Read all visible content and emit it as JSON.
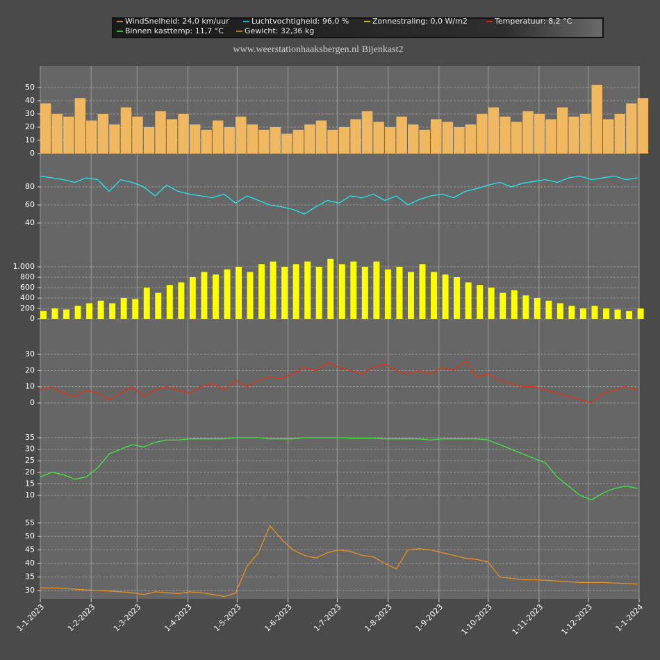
{
  "chart_data": {
    "type": "line",
    "title": "www.weerstationhaaksbergen.nl Bijenkast2",
    "x": [
      "1-1-2023",
      "8-1-2023",
      "15-1-2023",
      "22-1-2023",
      "29-1-2023",
      "5-2-2023",
      "12-2-2023",
      "19-2-2023",
      "26-2-2023",
      "5-3-2023",
      "12-3-2023",
      "19-3-2023",
      "26-3-2023",
      "2-4-2023",
      "9-4-2023",
      "16-4-2023",
      "23-4-2023",
      "30-4-2023",
      "7-5-2023",
      "14-5-2023",
      "21-5-2023",
      "28-5-2023",
      "4-6-2023",
      "11-6-2023",
      "18-6-2023",
      "25-6-2023",
      "2-7-2023",
      "9-7-2023",
      "16-7-2023",
      "23-7-2023",
      "30-7-2023",
      "6-8-2023",
      "13-8-2023",
      "20-8-2023",
      "27-8-2023",
      "3-9-2023",
      "10-9-2023",
      "17-9-2023",
      "24-9-2023",
      "1-10-2023",
      "8-10-2023",
      "15-10-2023",
      "22-10-2023",
      "29-10-2023",
      "5-11-2023",
      "12-11-2023",
      "19-11-2023",
      "26-11-2023",
      "3-12-2023",
      "10-12-2023",
      "17-12-2023",
      "24-12-2023",
      "31-12-2023"
    ],
    "xlim": [
      "1-1-2023",
      "1-1-2024"
    ],
    "xticks": [
      "1-1-2023",
      "1-2-2023",
      "1-3-2023",
      "1-4-2023",
      "1-5-2023",
      "1-6-2023",
      "1-7-2023",
      "1-8-2023",
      "1-9-2023",
      "1-10-2023",
      "1-11-2023",
      "1-12-2023",
      "1-1-2024"
    ],
    "grid": true,
    "series": [
      {
        "name": "WindSnelheid: 24,0 km/uur",
        "color": "#f0b860",
        "type": "bar",
        "values": [
          38,
          30,
          28,
          42,
          25,
          30,
          22,
          35,
          28,
          20,
          32,
          26,
          30,
          22,
          18,
          25,
          20,
          28,
          22,
          18,
          20,
          15,
          18,
          22,
          25,
          18,
          20,
          26,
          32,
          24,
          20,
          28,
          22,
          18,
          26,
          24,
          20,
          22,
          30,
          35,
          28,
          24,
          32,
          30,
          26,
          35,
          28,
          30,
          52,
          26,
          30,
          38,
          42
        ],
        "ylim": [
          0,
          55
        ],
        "yticks": [
          0,
          10,
          20,
          30,
          40,
          50
        ]
      },
      {
        "name": "Luchtvochtigheid: 96,0 %",
        "color": "#20e8f0",
        "type": "line",
        "values": [
          92,
          90,
          88,
          85,
          90,
          88,
          75,
          88,
          85,
          80,
          70,
          82,
          75,
          72,
          70,
          68,
          72,
          62,
          70,
          65,
          60,
          58,
          55,
          50,
          58,
          65,
          62,
          70,
          68,
          72,
          65,
          70,
          60,
          66,
          70,
          72,
          68,
          75,
          78,
          82,
          85,
          80,
          84,
          86,
          88,
          85,
          90,
          92,
          88,
          90,
          92,
          88,
          90
        ],
        "ylim": [
          28,
          98
        ],
        "yticks": [
          40,
          60,
          80
        ]
      },
      {
        "name": "Zonnestraling: 0,0 W/m2",
        "color": "#ffff00",
        "type": "spike",
        "values": [
          150,
          200,
          180,
          250,
          300,
          350,
          300,
          400,
          380,
          600,
          500,
          650,
          700,
          800,
          900,
          850,
          950,
          1000,
          900,
          1050,
          1100,
          1000,
          1050,
          1100,
          1000,
          1150,
          1050,
          1100,
          1000,
          1100,
          950,
          1000,
          900,
          1050,
          900,
          850,
          800,
          700,
          650,
          600,
          500,
          550,
          450,
          400,
          350,
          300,
          250,
          200,
          250,
          200,
          180,
          150,
          200
        ],
        "ylim": [
          0,
          1200
        ],
        "yticks": [
          0,
          200,
          400,
          600,
          800,
          {
            "value": 1000,
            "label": "1.000"
          }
        ]
      },
      {
        "name": "Temperatuur: 8,2 °C",
        "color": "#e83010",
        "type": "line",
        "values": [
          8,
          10,
          6,
          4,
          8,
          6,
          2,
          6,
          10,
          4,
          8,
          10,
          8,
          6,
          10,
          12,
          8,
          14,
          10,
          14,
          16,
          15,
          18,
          22,
          20,
          25,
          22,
          20,
          18,
          22,
          24,
          20,
          18,
          20,
          18,
          22,
          20,
          26,
          16,
          18,
          14,
          12,
          10,
          10,
          8,
          6,
          4,
          2,
          0,
          6,
          8,
          10,
          8
        ],
        "ylim": [
          -5,
          37
        ],
        "yticks": [
          0,
          10,
          20,
          30
        ]
      },
      {
        "name": "Binnen kasttemp: 11,7 °C",
        "color": "#40e840",
        "type": "line",
        "values": [
          18,
          20,
          19,
          17,
          18,
          22,
          28,
          30,
          32,
          31,
          33,
          34,
          34,
          34.5,
          34.5,
          34.5,
          34.5,
          35,
          35,
          35,
          34.5,
          34.5,
          34.5,
          35,
          35,
          35,
          35,
          34.8,
          34.8,
          34.8,
          34.5,
          34.5,
          34.5,
          34.5,
          34,
          34.5,
          34.5,
          34.5,
          34.5,
          34,
          32,
          30,
          28,
          26,
          24,
          18,
          14,
          10,
          8,
          11,
          13,
          14,
          13
        ],
        "ylim": [
          5,
          37
        ],
        "yticks": [
          10,
          15,
          20,
          25,
          30,
          35
        ]
      },
      {
        "name": "Gewicht: 32,36 kg",
        "color": "#e89020",
        "type": "line",
        "values": [
          31,
          31,
          30.8,
          30.5,
          30.2,
          30,
          29.8,
          29.5,
          29.2,
          28.5,
          29.5,
          29.2,
          28.8,
          29.5,
          29.2,
          28.5,
          27.8,
          29,
          39,
          44,
          54,
          49,
          45,
          43,
          42,
          44,
          45,
          44.5,
          43,
          42.5,
          40,
          38,
          45,
          45.5,
          45,
          44,
          43,
          42,
          41.5,
          40.5,
          35,
          34.5,
          34,
          34,
          33.8,
          33.5,
          33.2,
          33,
          33,
          33,
          32.8,
          32.6,
          32.4
        ],
        "ylim": [
          27,
          57
        ],
        "yticks": [
          30,
          35,
          40,
          45,
          50,
          55
        ]
      }
    ]
  }
}
